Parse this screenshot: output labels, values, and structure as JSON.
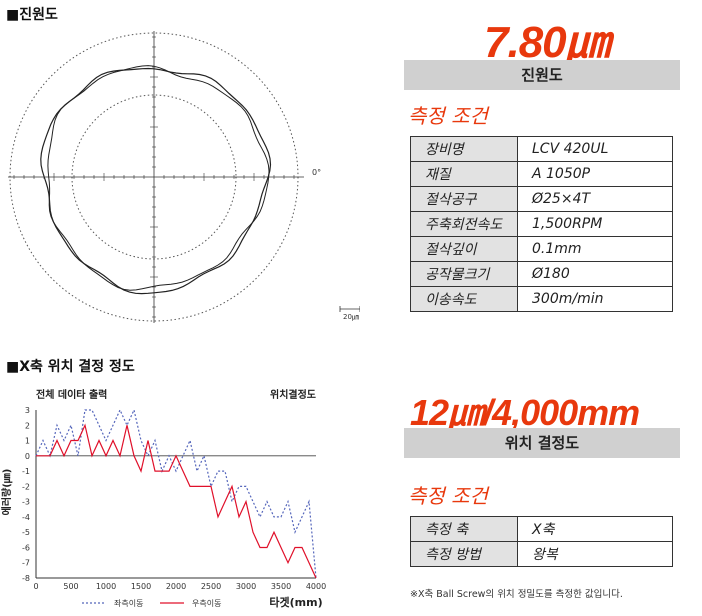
{
  "roundness": {
    "section_title": "■진원도",
    "value_label": "7.80㎛",
    "bar_label": "진원도",
    "angle_label": "0°",
    "scale_label": "20㎛",
    "conditions_title": "측정 조건",
    "spec": [
      {
        "key": "장비명",
        "value": "LCV 420UL"
      },
      {
        "key": "재질",
        "value": "A 1050P"
      },
      {
        "key": "절삭공구",
        "value": "Ø25×4T"
      },
      {
        "key": "주축회전속도",
        "value": "1,500RPM"
      },
      {
        "key": "절삭깊이",
        "value": "0.1mm"
      },
      {
        "key": "공작물크기",
        "value": "Ø180"
      },
      {
        "key": "이송속도",
        "value": "300m/min"
      }
    ]
  },
  "positioning": {
    "section_title": "■X축 위치 결정 정도",
    "value_label": "12㎛/4,000mm",
    "bar_label": "위치 결정도",
    "conditions_title": "측정 조건",
    "spec": [
      {
        "key": "측정 축",
        "value": "X축"
      },
      {
        "key": "측정 방법",
        "value": "왕복"
      }
    ],
    "footnote": "※X축 Ball Screw의 위치 정밀도를 측정한 값입니다.",
    "colors": {
      "series1": "#5566bb",
      "series2": "#e0102a"
    }
  },
  "chart_data": {
    "type": "line",
    "title": "전체 데이타 출력",
    "subtitle": "위치결정도",
    "xlabel": "타겟(mm)",
    "ylabel": "에러량(㎛)",
    "xlim": [
      0,
      4000
    ],
    "ylim": [
      -8,
      3
    ],
    "xticks": [
      0,
      500,
      1000,
      1500,
      2000,
      2500,
      3000,
      3500,
      4000
    ],
    "yticks": [
      3,
      2,
      1,
      0,
      -1,
      -2,
      -3,
      -4,
      -5,
      -6,
      -7,
      -8
    ],
    "legend_position": "bottom",
    "series": [
      {
        "name": "좌측이동",
        "style": "dotted",
        "x": [
          0,
          100,
          200,
          300,
          400,
          500,
          600,
          700,
          800,
          900,
          1000,
          1100,
          1200,
          1300,
          1400,
          1500,
          1600,
          1700,
          1800,
          1900,
          2000,
          2100,
          2200,
          2300,
          2400,
          2500,
          2600,
          2700,
          2800,
          2900,
          3000,
          3100,
          3200,
          3300,
          3400,
          3500,
          3600,
          3700,
          3800,
          3900,
          4000
        ],
        "values": [
          0,
          1,
          0,
          2,
          1,
          2,
          0,
          3,
          3,
          2,
          1,
          2,
          3,
          2,
          3,
          1,
          0,
          1,
          -1,
          0,
          -1,
          0,
          1,
          -1,
          0,
          -2,
          -1,
          -1,
          -3,
          -2,
          -2,
          -3,
          -4,
          -3,
          -4,
          -4,
          -3,
          -5,
          -4,
          -3,
          -8
        ]
      },
      {
        "name": "우측이동",
        "style": "solid",
        "x": [
          0,
          100,
          200,
          300,
          400,
          500,
          600,
          700,
          800,
          900,
          1000,
          1100,
          1200,
          1300,
          1400,
          1500,
          1600,
          1700,
          1800,
          1900,
          2000,
          2100,
          2200,
          2300,
          2400,
          2500,
          2600,
          2700,
          2800,
          2900,
          3000,
          3100,
          3200,
          3300,
          3400,
          3500,
          3600,
          3700,
          3800,
          3900,
          4000
        ],
        "values": [
          0,
          0,
          0,
          1,
          0,
          1,
          1,
          2,
          0,
          1,
          0,
          1,
          0,
          2,
          0,
          -1,
          1,
          -1,
          -1,
          -1,
          0,
          -1,
          -2,
          -2,
          -2,
          -2,
          -4,
          -3,
          -2,
          -4,
          -3,
          -5,
          -6,
          -6,
          -5,
          -6,
          -7,
          -6,
          -6,
          -7,
          -8
        ]
      }
    ]
  }
}
